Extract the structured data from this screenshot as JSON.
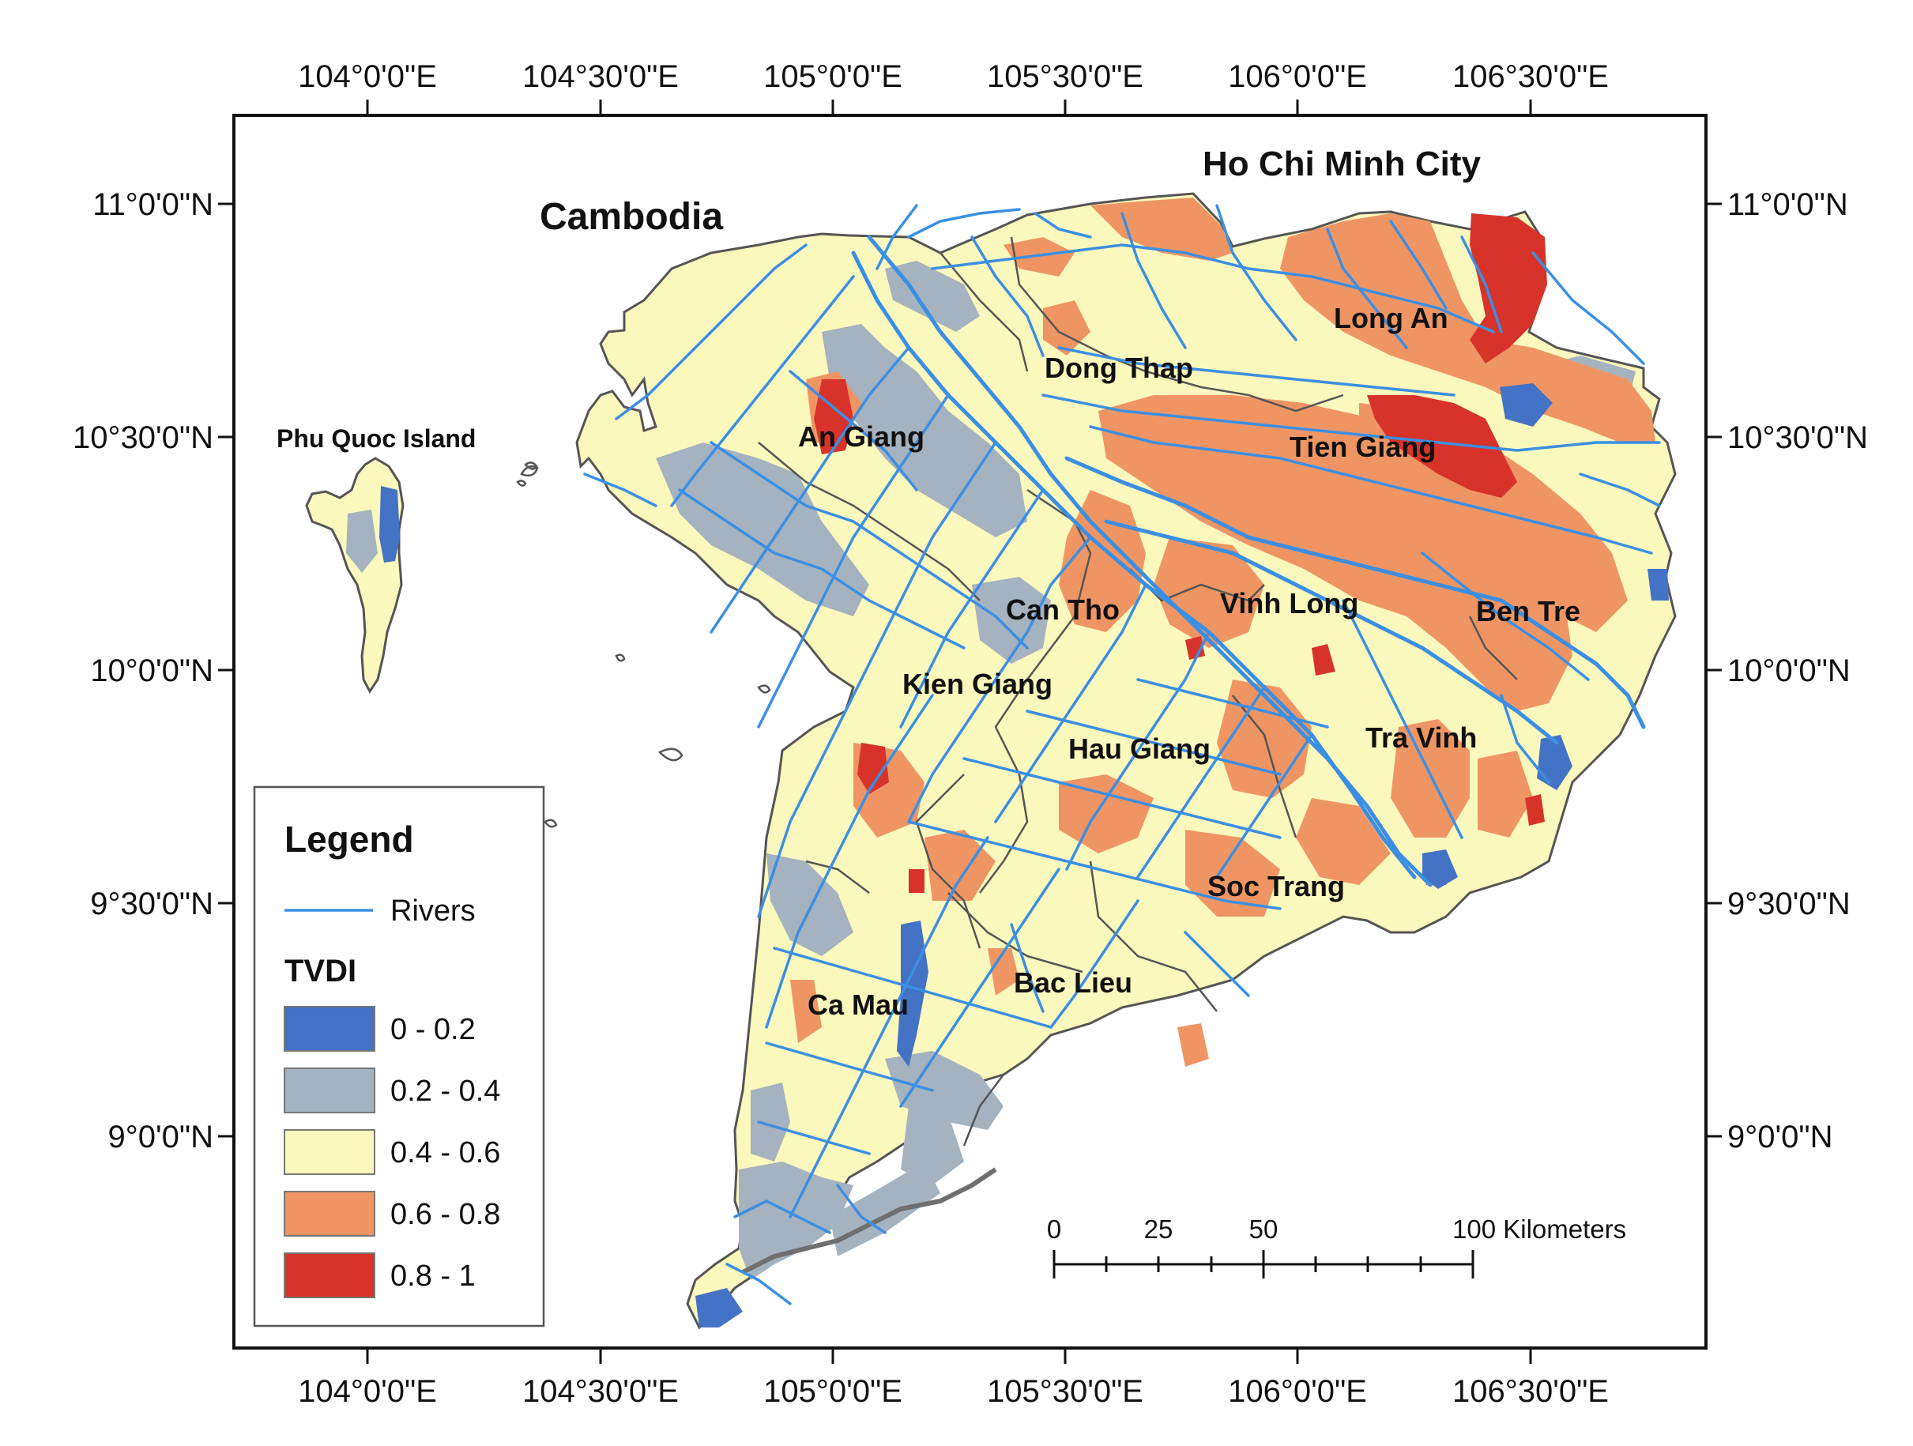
{
  "map": {
    "lon_labels": [
      "104°0'0\"E",
      "104°30'0\"E",
      "105°0'0\"E",
      "105°30'0\"E",
      "106°0'0\"E",
      "106°30'0\"E"
    ],
    "lat_labels": [
      "11°0'0\"N",
      "10°30'0\"N",
      "10°0'0\"N",
      "9°30'0\"N",
      "9°0'0\"N"
    ],
    "places": {
      "cambodia": "Cambodia",
      "hcmc": "Ho Chi Minh City",
      "phu_quoc": "Phu Quoc Island",
      "long_an": "Long An",
      "dong_thap": "Dong Thap",
      "an_giang": "An Giang",
      "tien_giang": "Tien Giang",
      "can_tho": "Can Tho",
      "vinh_long": "Vinh Long",
      "ben_tre": "Ben Tre",
      "kien_giang": "Kien Giang",
      "hau_giang": "Hau Giang",
      "tra_vinh": "Tra Vinh",
      "soc_trang": "Soc Trang",
      "bac_lieu": "Bac Lieu",
      "ca_mau": "Ca Mau"
    }
  },
  "legend": {
    "title": "Legend",
    "rivers_label": "Rivers",
    "index_title": "TVDI",
    "classes": [
      {
        "label": "0 - 0.2",
        "color": "#4472c4"
      },
      {
        "label": "0.2 - 0.4",
        "color": "#a5b2bf"
      },
      {
        "label": "0.4 - 0.6",
        "color": "#fbf8bd"
      },
      {
        "label": "0.6 - 0.8",
        "color": "#ef9564"
      },
      {
        "label": "0.8 - 1",
        "color": "#d7332b"
      }
    ],
    "river_color": "#3b8fe3"
  },
  "scale_bar": {
    "ticks": [
      "0",
      "25",
      "50"
    ],
    "end_label": "100 Kilometers"
  }
}
